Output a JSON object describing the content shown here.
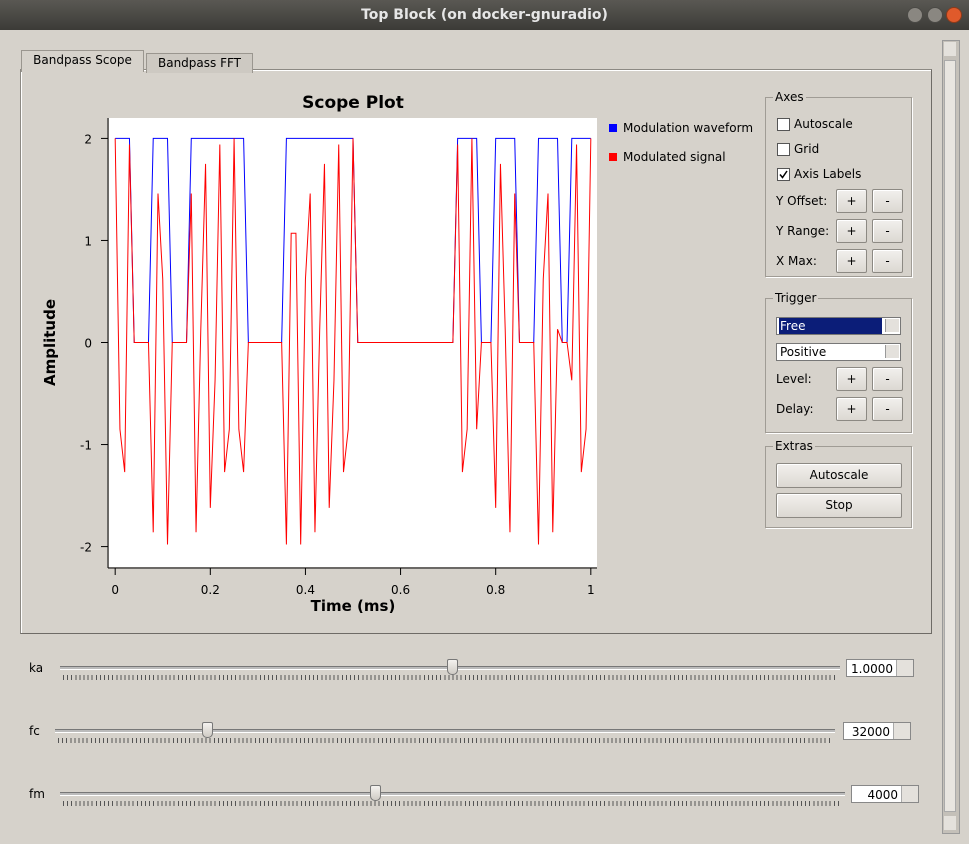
{
  "window": {
    "title": "Top Block (on docker-gnuradio)"
  },
  "tabs": [
    "Bandpass Scope",
    "Bandpass FFT"
  ],
  "chart_data": {
    "type": "line",
    "title": "Scope Plot",
    "x_label": "Time (ms)",
    "y_label": "Amplitude",
    "x": [
      0,
      0.01,
      0.02,
      0.03,
      0.04,
      0.05,
      0.06,
      0.07,
      0.08,
      0.09,
      0.1,
      0.11,
      0.12,
      0.13,
      0.14,
      0.15,
      0.16,
      0.17,
      0.18,
      0.19,
      0.2,
      0.21,
      0.22,
      0.23,
      0.24,
      0.25,
      0.26,
      0.27,
      0.28,
      0.29,
      0.3,
      0.31,
      0.32,
      0.33,
      0.34,
      0.35,
      0.36,
      0.37,
      0.38,
      0.39,
      0.4,
      0.41,
      0.42,
      0.43,
      0.44,
      0.45,
      0.46,
      0.47,
      0.48,
      0.49,
      0.5,
      0.51,
      0.52,
      0.53,
      0.54,
      0.55,
      0.56,
      0.57,
      0.58,
      0.59,
      0.6,
      0.61,
      0.62,
      0.63,
      0.64,
      0.65,
      0.66,
      0.67,
      0.68,
      0.69,
      0.7,
      0.71,
      0.72,
      0.73,
      0.74,
      0.75,
      0.76,
      0.77,
      0.78,
      0.79,
      0.8,
      0.81,
      0.82,
      0.83,
      0.84,
      0.85,
      0.86,
      0.87,
      0.88,
      0.89,
      0.9,
      0.91,
      0.92,
      0.93,
      0.94,
      0.95,
      0.96,
      0.97,
      0.98,
      0.99,
      1
    ],
    "series": [
      {
        "name": "Modulation waveform",
        "color": "#0000ff",
        "values": [
          2,
          2,
          2,
          2,
          0,
          0,
          0,
          0,
          2,
          2,
          2,
          2,
          0,
          0,
          0,
          0,
          2,
          2,
          2,
          2,
          2,
          2,
          2,
          2,
          2,
          2,
          2,
          2,
          0,
          0,
          0,
          0,
          0,
          0,
          0,
          0,
          2,
          2,
          2,
          2,
          2,
          2,
          2,
          2,
          2,
          2,
          2,
          2,
          2,
          2,
          2,
          0,
          0,
          0,
          0,
          0,
          0,
          0,
          0,
          0,
          0,
          0,
          0,
          0,
          0,
          0,
          0,
          0,
          0,
          0,
          0,
          0,
          2,
          2,
          2,
          2,
          2,
          0,
          0,
          0,
          2,
          2,
          2,
          2,
          2,
          0,
          0,
          0,
          0,
          2,
          2,
          2,
          2,
          2,
          0,
          0,
          2,
          2,
          2,
          2,
          2
        ]
      },
      {
        "name": "Modulated signal",
        "color": "#ff0000",
        "values": [
          2,
          -0.85,
          -1.27,
          1.94,
          0,
          0,
          0,
          0,
          -1.86,
          1.46,
          0.62,
          -1.98,
          0,
          0,
          0,
          0,
          1.46,
          -1.86,
          0.13,
          1.75,
          -1.62,
          -0.37,
          1.94,
          -1.27,
          -0.85,
          2,
          -0.85,
          -1.27,
          0,
          0,
          0,
          0,
          0,
          0,
          0,
          0,
          -1.98,
          1.07,
          1.07,
          -1.98,
          0.62,
          1.46,
          -1.86,
          0.13,
          1.75,
          -1.62,
          -0.37,
          1.94,
          -1.27,
          -0.85,
          2,
          0,
          0,
          0,
          0,
          0,
          0,
          0,
          0,
          0,
          0,
          0,
          0,
          0,
          0,
          0,
          0,
          0,
          0,
          0,
          0,
          0,
          1.94,
          -1.27,
          -0.85,
          2,
          -0.85,
          0,
          0,
          0,
          -1.62,
          1.75,
          0.13,
          -1.86,
          1.46,
          0,
          0,
          0,
          0,
          -1.98,
          0.62,
          1.46,
          -1.86,
          0.13,
          0,
          0,
          -0.37,
          1.94,
          -1.27,
          -0.85,
          2
        ]
      }
    ],
    "xlim": [
      -0.013,
      1.013
    ],
    "ylim": [
      -2.2,
      2.2
    ],
    "xticks": [
      0,
      0.2,
      0.4,
      0.6,
      0.8,
      1
    ],
    "yticks": [
      -2,
      -1,
      0,
      1,
      2
    ],
    "grid": false,
    "legend": "right"
  },
  "axes_panel": {
    "title": "Axes",
    "checkboxes": [
      {
        "label": "Autoscale",
        "checked": false
      },
      {
        "label": "Grid",
        "checked": false
      },
      {
        "label": "Axis Labels",
        "checked": true
      }
    ],
    "rows": [
      {
        "label": "Y Offset:",
        "buttons": [
          "+",
          "-"
        ]
      },
      {
        "label": "Y Range:",
        "buttons": [
          "+",
          "-"
        ]
      },
      {
        "label": "X Max:",
        "buttons": [
          "+",
          "-"
        ]
      }
    ]
  },
  "trigger_panel": {
    "title": "Trigger",
    "selects": [
      "Free",
      "Positive"
    ],
    "rows": [
      {
        "label": "Level:",
        "buttons": [
          "+",
          "-"
        ]
      },
      {
        "label": "Delay:",
        "buttons": [
          "+",
          "-"
        ]
      }
    ]
  },
  "extras_panel": {
    "title": "Extras",
    "buttons": [
      "Autoscale",
      "Stop"
    ]
  },
  "sliders": [
    {
      "label": "ka",
      "value": "1.0000"
    },
    {
      "label": "fc",
      "value": "32000"
    },
    {
      "label": "fm",
      "value": "4000"
    }
  ]
}
